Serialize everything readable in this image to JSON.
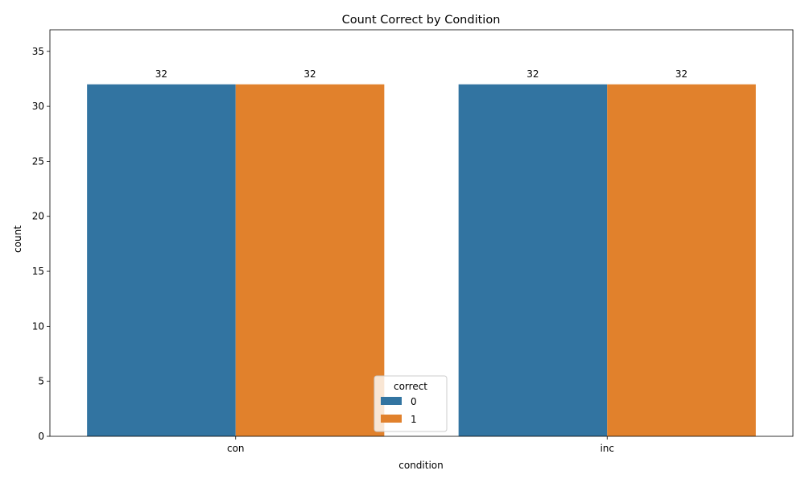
{
  "chart_data": {
    "type": "bar",
    "title": "Count Correct by Condition",
    "xlabel": "condition",
    "ylabel": "count",
    "categories": [
      "con",
      "inc"
    ],
    "series": [
      {
        "name": "0",
        "values": [
          32,
          32
        ],
        "color": "#3274a1"
      },
      {
        "name": "1",
        "values": [
          32,
          32
        ],
        "color": "#e1812c"
      }
    ],
    "ylim": [
      0,
      36.96
    ],
    "yticks": [
      0,
      5,
      10,
      15,
      20,
      25,
      30,
      35
    ],
    "legend": {
      "title": "correct",
      "position": "lower-center"
    },
    "grid": false,
    "data_labels": true
  }
}
